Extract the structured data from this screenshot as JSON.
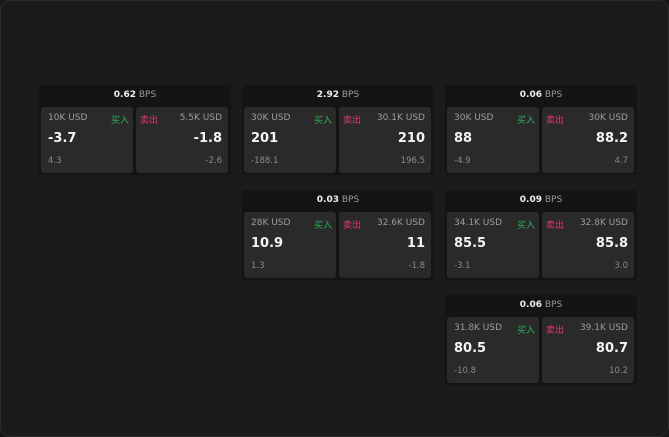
{
  "unit": "BPS",
  "buy_label": "买入",
  "sell_label": "卖出",
  "colors": {
    "buy": "#2fb35a",
    "sell": "#e0396a"
  },
  "cards": [
    {
      "spread": "0.62",
      "buy": {
        "size": "10K USD",
        "price": "-3.7",
        "delta": "4.3"
      },
      "sell": {
        "size": "5.5K USD",
        "price": "-1.8",
        "delta": "-2.6"
      }
    },
    {
      "spread": "2.92",
      "buy": {
        "size": "30K USD",
        "price": "201",
        "delta": "-188.1"
      },
      "sell": {
        "size": "30.1K USD",
        "price": "210",
        "delta": "196.5"
      }
    },
    {
      "spread": "0.06",
      "buy": {
        "size": "30K USD",
        "price": "88",
        "delta": "-4.9"
      },
      "sell": {
        "size": "30K USD",
        "price": "88.2",
        "delta": "4.7"
      }
    },
    {
      "spread": "0.03",
      "buy": {
        "size": "28K USD",
        "price": "10.9",
        "delta": "1.3"
      },
      "sell": {
        "size": "32.6K USD",
        "price": "11",
        "delta": "-1.8"
      }
    },
    {
      "spread": "0.09",
      "buy": {
        "size": "34.1K USD",
        "price": "85.5",
        "delta": "-3.1"
      },
      "sell": {
        "size": "32.8K USD",
        "price": "85.8",
        "delta": "3.0"
      }
    },
    {
      "spread": "0.06",
      "buy": {
        "size": "31.8K USD",
        "price": "80.5",
        "delta": "-10.8"
      },
      "sell": {
        "size": "39.1K USD",
        "price": "80.7",
        "delta": "10.2"
      }
    }
  ]
}
